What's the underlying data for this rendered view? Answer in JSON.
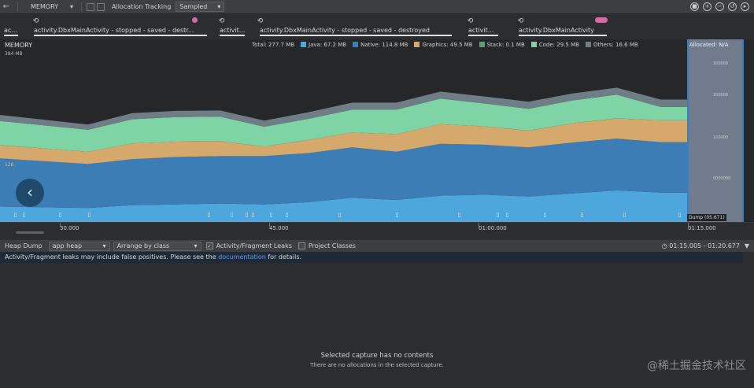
{
  "toolbar": {
    "back_icon": "arrow-left-icon",
    "profiler_name": "MEMORY",
    "allocation_label": "Allocation Tracking",
    "allocation_value": "Sampled",
    "right_icons": [
      "stop-icon",
      "zoom-in-icon",
      "zoom-out-icon",
      "reset-zoom-icon",
      "go-live-icon"
    ]
  },
  "events": {
    "activities": [
      "ac...",
      "activity.DbxMainActivity - stopped - saved - destr...",
      "activit...",
      "activity.DbxMainActivity - stopped - saved - destroyed",
      "activit...",
      "activity.DbxMainActivity"
    ]
  },
  "chart": {
    "title": "MEMORY",
    "y_max_label": "384 MB",
    "y_mid_label": "128",
    "nav_icon": "chevron-left-icon",
    "legend": [
      {
        "label": "Total: 277.7 MB",
        "color": ""
      },
      {
        "label": "Java: 67.2 MB",
        "color": "#4da7dc"
      },
      {
        "label": "Native: 114.8 MB",
        "color": "#3b7db4"
      },
      {
        "label": "Graphics: 49.5 MB",
        "color": "#d5a86b"
      },
      {
        "label": "Stack: 0.1 MB",
        "color": "#5aa06c"
      },
      {
        "label": "Code: 29.5 MB",
        "color": "#7fd4a5"
      },
      {
        "label": "Others: 16.6 MB",
        "color": "#6f7d87"
      }
    ],
    "selection": {
      "allocated_label": "Allocated: N/A",
      "dump_label": "Dump (05.671)",
      "y_ticks": [
        "300000",
        "200000",
        "100000",
        "0000000"
      ]
    }
  },
  "chart_data": {
    "type": "area",
    "title": "MEMORY",
    "ylabel": "",
    "y_unit": "MB",
    "ylim": [
      0,
      384
    ],
    "x_labels": [
      "30.000",
      "45.000",
      "01:00.000",
      "01:15.000"
    ],
    "x": [
      0,
      10,
      15,
      20,
      25,
      30,
      35,
      40,
      45,
      50,
      55,
      60,
      65,
      70,
      75,
      78
    ],
    "series": [
      {
        "name": "Java",
        "color": "#4da7dc",
        "values": [
          35,
          32,
          38,
          40,
          42,
          40,
          45,
          55,
          50,
          60,
          62,
          58,
          65,
          72,
          67,
          67
        ]
      },
      {
        "name": "Native",
        "color": "#3b7db4",
        "values": [
          110,
          100,
          105,
          108,
          108,
          110,
          112,
          115,
          110,
          118,
          114,
          112,
          116,
          118,
          115,
          115
        ]
      },
      {
        "name": "Graphics",
        "color": "#d5a86b",
        "values": [
          30,
          28,
          36,
          35,
          34,
          22,
          30,
          34,
          40,
          45,
          42,
          38,
          44,
          46,
          50,
          50
        ]
      },
      {
        "name": "Stack",
        "color": "#5aa06c",
        "values": [
          0.1,
          0.1,
          0.1,
          0.1,
          0.1,
          0.1,
          0.1,
          0.1,
          0.1,
          0.1,
          0.1,
          0.1,
          0.1,
          0.1,
          0.1,
          0.1
        ]
      },
      {
        "name": "Code",
        "color": "#7fd4a5",
        "values": [
          55,
          50,
          55,
          56,
          56,
          45,
          48,
          52,
          56,
          58,
          52,
          50,
          52,
          54,
          30,
          30
        ]
      },
      {
        "name": "Others",
        "color": "#6f7d87",
        "values": [
          14,
          12,
          14,
          14,
          14,
          14,
          15,
          16,
          16,
          16,
          16,
          16,
          16,
          16,
          17,
          17
        ]
      }
    ],
    "grid": false,
    "legend": "top"
  },
  "time_axis": {
    "labels": [
      "30.000",
      "45.000",
      "01:00.000",
      "01:15.000"
    ]
  },
  "heap": {
    "label": "Heap Dump",
    "heap_select": "app heap",
    "arrange_select": "Arrange by class",
    "leaks_label": "Activity/Fragment Leaks",
    "leaks_checked": true,
    "project_label": "Project Classes",
    "project_checked": false,
    "range": "01:15.005 - 01:20.677",
    "clock_icon": "clock-icon",
    "filter_icon": "filter-icon"
  },
  "info": {
    "text_before": "Activity/Fragment leaks may include false positives. Please see the ",
    "link": "documentation",
    "text_after": " for details."
  },
  "empty": {
    "title": "Selected capture has no contents",
    "subtitle": "There are no allocations in the selected capture."
  },
  "watermark": "@稀土掘金技术社区"
}
